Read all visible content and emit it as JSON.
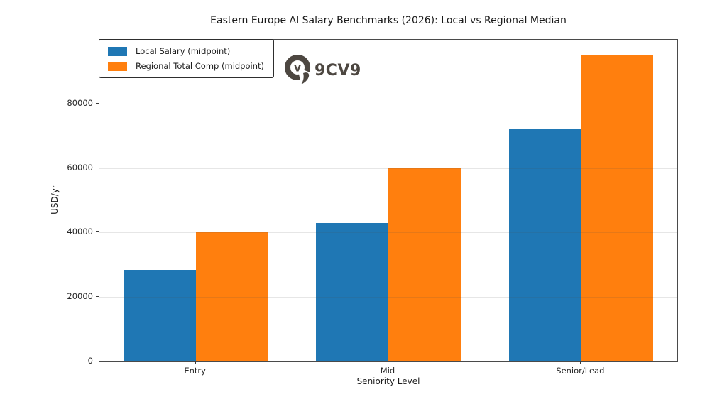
{
  "watermark": {
    "brand": "9CV9",
    "color": "#4d4741"
  },
  "chart_data": {
    "type": "bar",
    "title": "Eastern Europe AI Salary Benchmarks (2026): Local vs Regional Median",
    "categories": [
      "Entry",
      "Mid",
      "Senior/Lead"
    ],
    "series": [
      {
        "name": "Local Salary (midpoint)",
        "color": "#1f77b4",
        "values": [
          28500,
          43000,
          72000
        ]
      },
      {
        "name": "Regional Total Comp (midpoint)",
        "color": "#ff7f0e",
        "values": [
          40000,
          60000,
          95000
        ]
      }
    ],
    "xlabel": "Seniority Level",
    "ylabel": "USD/yr",
    "ylim": [
      0,
      99750
    ],
    "yticks": [
      0,
      20000,
      40000,
      60000,
      80000
    ],
    "grid": true,
    "legend_position": "upper-left",
    "background": "#ffffff",
    "frame_color": "#4a4a4a"
  }
}
